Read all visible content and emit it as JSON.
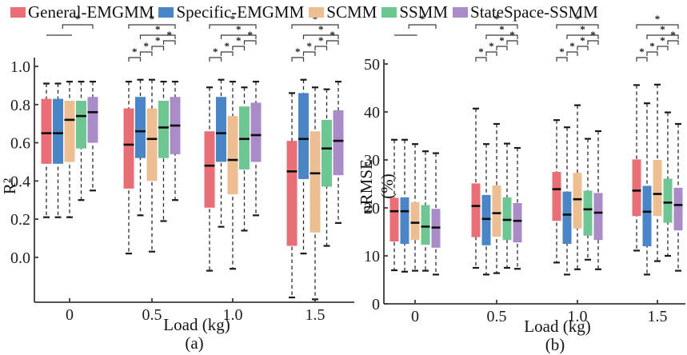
{
  "legend": {
    "items": [
      {
        "label": "General-EMGMM",
        "color": "#E96E75"
      },
      {
        "label": "Specific-EMGMM",
        "color": "#4A86C7"
      },
      {
        "label": "SCMM",
        "color": "#ECBE92"
      },
      {
        "label": "SSMM",
        "color": "#6EC792"
      },
      {
        "label": "StateSpace-SSMM",
        "color": "#A98BC7"
      }
    ]
  },
  "chart_data": [
    {
      "type": "boxplot",
      "caption": "(a)",
      "ylabel": "R²",
      "xlabel": "Load (kg)",
      "ylim": [
        -0.24,
        1.0
      ],
      "grid": false,
      "yticks": [
        "1.0",
        "0.8",
        "0.6",
        "0.4",
        "0.2",
        "0.0"
      ],
      "categories": [
        "0",
        "0.5",
        "1.0",
        "1.5"
      ],
      "sig_marker": "*",
      "series": [
        {
          "name": "General-EMGMM",
          "color": "#E96E75",
          "boxes": [
            [
              0.21,
              0.49,
              0.65,
              0.83,
              0.91
            ],
            [
              0.02,
              0.36,
              0.59,
              0.78,
              0.92
            ],
            [
              -0.07,
              0.26,
              0.48,
              0.66,
              0.89
            ],
            [
              -0.21,
              0.06,
              0.45,
              0.61,
              0.86
            ]
          ]
        },
        {
          "name": "Specific-EMGMM",
          "color": "#4A86C7",
          "boxes": [
            [
              0.21,
              0.49,
              0.65,
              0.83,
              0.91
            ],
            [
              0.22,
              0.52,
              0.66,
              0.84,
              0.93
            ],
            [
              0.16,
              0.5,
              0.65,
              0.84,
              0.93
            ],
            [
              0.02,
              0.41,
              0.62,
              0.86,
              0.93
            ]
          ]
        },
        {
          "name": "SCMM",
          "color": "#ECBE92",
          "boxes": [
            [
              0.21,
              0.5,
              0.72,
              0.82,
              0.92
            ],
            [
              0.03,
              0.4,
              0.62,
              0.78,
              0.93
            ],
            [
              -0.06,
              0.33,
              0.51,
              0.74,
              0.92
            ],
            [
              -0.22,
              0.13,
              0.44,
              0.66,
              0.89
            ]
          ]
        },
        {
          "name": "SSMM",
          "color": "#6EC792",
          "boxes": [
            [
              0.3,
              0.57,
              0.74,
              0.82,
              0.92
            ],
            [
              0.19,
              0.52,
              0.68,
              0.82,
              0.92
            ],
            [
              0.14,
              0.46,
              0.62,
              0.79,
              0.89
            ],
            [
              0.06,
              0.37,
              0.57,
              0.72,
              0.88
            ]
          ]
        },
        {
          "name": "StateSpace-SSMM",
          "color": "#A98BC7",
          "boxes": [
            [
              0.35,
              0.6,
              0.76,
              0.84,
              0.92
            ],
            [
              0.3,
              0.54,
              0.69,
              0.84,
              0.92
            ],
            [
              0.22,
              0.5,
              0.64,
              0.81,
              0.92
            ],
            [
              0.18,
              0.43,
              0.61,
              0.77,
              0.92
            ]
          ]
        }
      ],
      "significance": [
        [
          {
            "from": 1,
            "to": 3.2,
            "row": 1,
            "style": "line",
            "star": false
          },
          {
            "from": 2.4,
            "to": 5,
            "row": 0,
            "style": "bracket",
            "star": true
          }
        ],
        [
          {
            "from": 1,
            "to": 5,
            "row": 0,
            "style": "bracket",
            "star": true
          },
          {
            "from": 2,
            "to": 5,
            "row": 1,
            "style": "bracket",
            "star": true
          },
          {
            "from": 1,
            "to": 2,
            "row": 2,
            "style": "bracket",
            "star": true
          },
          {
            "from": 2,
            "to": 3,
            "row": 3,
            "style": "bracket",
            "star": true
          },
          {
            "from": 3,
            "to": 4,
            "row": 4,
            "style": "bracket",
            "star": true
          },
          {
            "from": 4,
            "to": 5,
            "row": 5,
            "style": "bracket",
            "star": true
          }
        ],
        [
          {
            "from": 1,
            "to": 5,
            "row": 0,
            "style": "bracket",
            "star": true
          },
          {
            "from": 2,
            "to": 5,
            "row": 1,
            "style": "bracket",
            "star": true
          },
          {
            "from": 1,
            "to": 2,
            "row": 2,
            "style": "bracket",
            "star": true
          },
          {
            "from": 2,
            "to": 3,
            "row": 3,
            "style": "bracket",
            "star": true
          },
          {
            "from": 3,
            "to": 4,
            "row": 4,
            "style": "bracket",
            "star": true
          },
          {
            "from": 4,
            "to": 5,
            "row": 5,
            "style": "bracket",
            "star": true
          }
        ],
        [
          {
            "from": 1,
            "to": 5,
            "row": 0,
            "style": "bracket",
            "star": true
          },
          {
            "from": 2,
            "to": 5,
            "row": 1,
            "style": "bracket",
            "star": true
          },
          {
            "from": 1,
            "to": 2,
            "row": 2,
            "style": "bracket",
            "star": true
          },
          {
            "from": 2,
            "to": 3,
            "row": 3,
            "style": "bracket",
            "star": true
          },
          {
            "from": 3,
            "to": 4,
            "row": 4,
            "style": "bracket",
            "star": true
          },
          {
            "from": 4,
            "to": 5,
            "row": 5,
            "style": "bracket",
            "star": true
          }
        ]
      ]
    },
    {
      "type": "boxplot",
      "caption": "(b)",
      "ylabel": "nRMSE (%)",
      "xlabel": "Load (kg)",
      "ylim": [
        0,
        50
      ],
      "grid": false,
      "yticks": [
        "50",
        "40",
        "30",
        "20",
        "10",
        "0"
      ],
      "categories": [
        "0",
        "0.5",
        "1.0",
        "1.5"
      ],
      "sig_marker": "*",
      "series": [
        {
          "name": "General-EMGMM",
          "color": "#E96E75",
          "boxes": [
            [
              7.0,
              13.0,
              19.3,
              22.1,
              34.2
            ],
            [
              7.5,
              13.9,
              20.4,
              25.1,
              40.7
            ],
            [
              8.6,
              17.3,
              23.9,
              27.5,
              38.3
            ],
            [
              11.1,
              18.3,
              23.6,
              30.1,
              45.6
            ]
          ]
        },
        {
          "name": "Specific-EMGMM",
          "color": "#4A86C7",
          "boxes": [
            [
              6.7,
              12.5,
              19.3,
              22.2,
              34.2
            ],
            [
              6.1,
              12.2,
              17.7,
              22.7,
              33.3
            ],
            [
              6.1,
              12.5,
              18.6,
              23.4,
              36.8
            ],
            [
              6.1,
              12.0,
              19.2,
              24.6,
              41.8
            ]
          ]
        },
        {
          "name": "SCMM",
          "color": "#ECBE92",
          "boxes": [
            [
              6.9,
              13.3,
              16.9,
              21.2,
              33.3
            ],
            [
              6.4,
              14.0,
              18.9,
              24.7,
              37.5
            ],
            [
              7.2,
              15.7,
              21.8,
              27.3,
              41.4
            ],
            [
              8.9,
              18.3,
              22.9,
              30.0,
              45.7
            ]
          ]
        },
        {
          "name": "SSMM",
          "color": "#6EC792",
          "boxes": [
            [
              6.9,
              12.3,
              16.1,
              20.6,
              31.8
            ],
            [
              7.5,
              13.3,
              17.5,
              22.2,
              33.4
            ],
            [
              9.2,
              14.2,
              19.7,
              23.6,
              34.4
            ],
            [
              10.0,
              16.9,
              21.1,
              26.1,
              39.9
            ]
          ]
        },
        {
          "name": "StateSpace-SSMM",
          "color": "#A98BC7",
          "boxes": [
            [
              6.1,
              11.7,
              15.9,
              19.8,
              31.4
            ],
            [
              7.3,
              12.8,
              17.3,
              21.0,
              32.5
            ],
            [
              7.2,
              13.3,
              19.0,
              23.1,
              36.0
            ],
            [
              6.9,
              15.3,
              20.6,
              24.2,
              37.5
            ]
          ]
        }
      ],
      "significance": [
        [
          {
            "from": 1,
            "to": 3.2,
            "row": 1,
            "style": "line",
            "star": false
          },
          {
            "from": 2.4,
            "to": 5,
            "row": 0,
            "style": "bracket",
            "star": true
          }
        ],
        [
          {
            "from": 1,
            "to": 5,
            "row": 0,
            "style": "bracket",
            "star": true
          },
          {
            "from": 2,
            "to": 5,
            "row": 1,
            "style": "bracket",
            "star": true
          },
          {
            "from": 1,
            "to": 2,
            "row": 2,
            "style": "bracket",
            "star": true
          },
          {
            "from": 2,
            "to": 3,
            "row": 3,
            "style": "bracket",
            "star": true
          },
          {
            "from": 3,
            "to": 4,
            "row": 4,
            "style": "bracket",
            "star": true
          },
          {
            "from": 4,
            "to": 5,
            "row": 5,
            "style": "bracket",
            "star": true
          }
        ],
        [
          {
            "from": 1,
            "to": 5,
            "row": 0,
            "style": "bracket",
            "star": true
          },
          {
            "from": 2,
            "to": 5,
            "row": 1,
            "style": "bracket",
            "star": true
          },
          {
            "from": 1,
            "to": 2,
            "row": 2,
            "style": "bracket",
            "star": true
          },
          {
            "from": 2,
            "to": 3,
            "row": 3,
            "style": "bracket",
            "star": true
          },
          {
            "from": 3,
            "to": 4,
            "row": 4,
            "style": "bracket",
            "star": true
          },
          {
            "from": 4,
            "to": 5,
            "row": 5,
            "style": "bracket",
            "star": true
          }
        ],
        [
          {
            "from": 1,
            "to": 5,
            "row": 0,
            "style": "bracket",
            "star": true
          },
          {
            "from": 2,
            "to": 5,
            "row": 1,
            "style": "bracket",
            "star": true
          },
          {
            "from": 1,
            "to": 2,
            "row": 2,
            "style": "bracket",
            "star": true
          },
          {
            "from": 2,
            "to": 3,
            "row": 3,
            "style": "bracket",
            "star": true
          },
          {
            "from": 3,
            "to": 4,
            "row": 4,
            "style": "bracket",
            "star": true
          },
          {
            "from": 4,
            "to": 5,
            "row": 5,
            "style": "bracket",
            "star": true
          }
        ]
      ]
    }
  ]
}
